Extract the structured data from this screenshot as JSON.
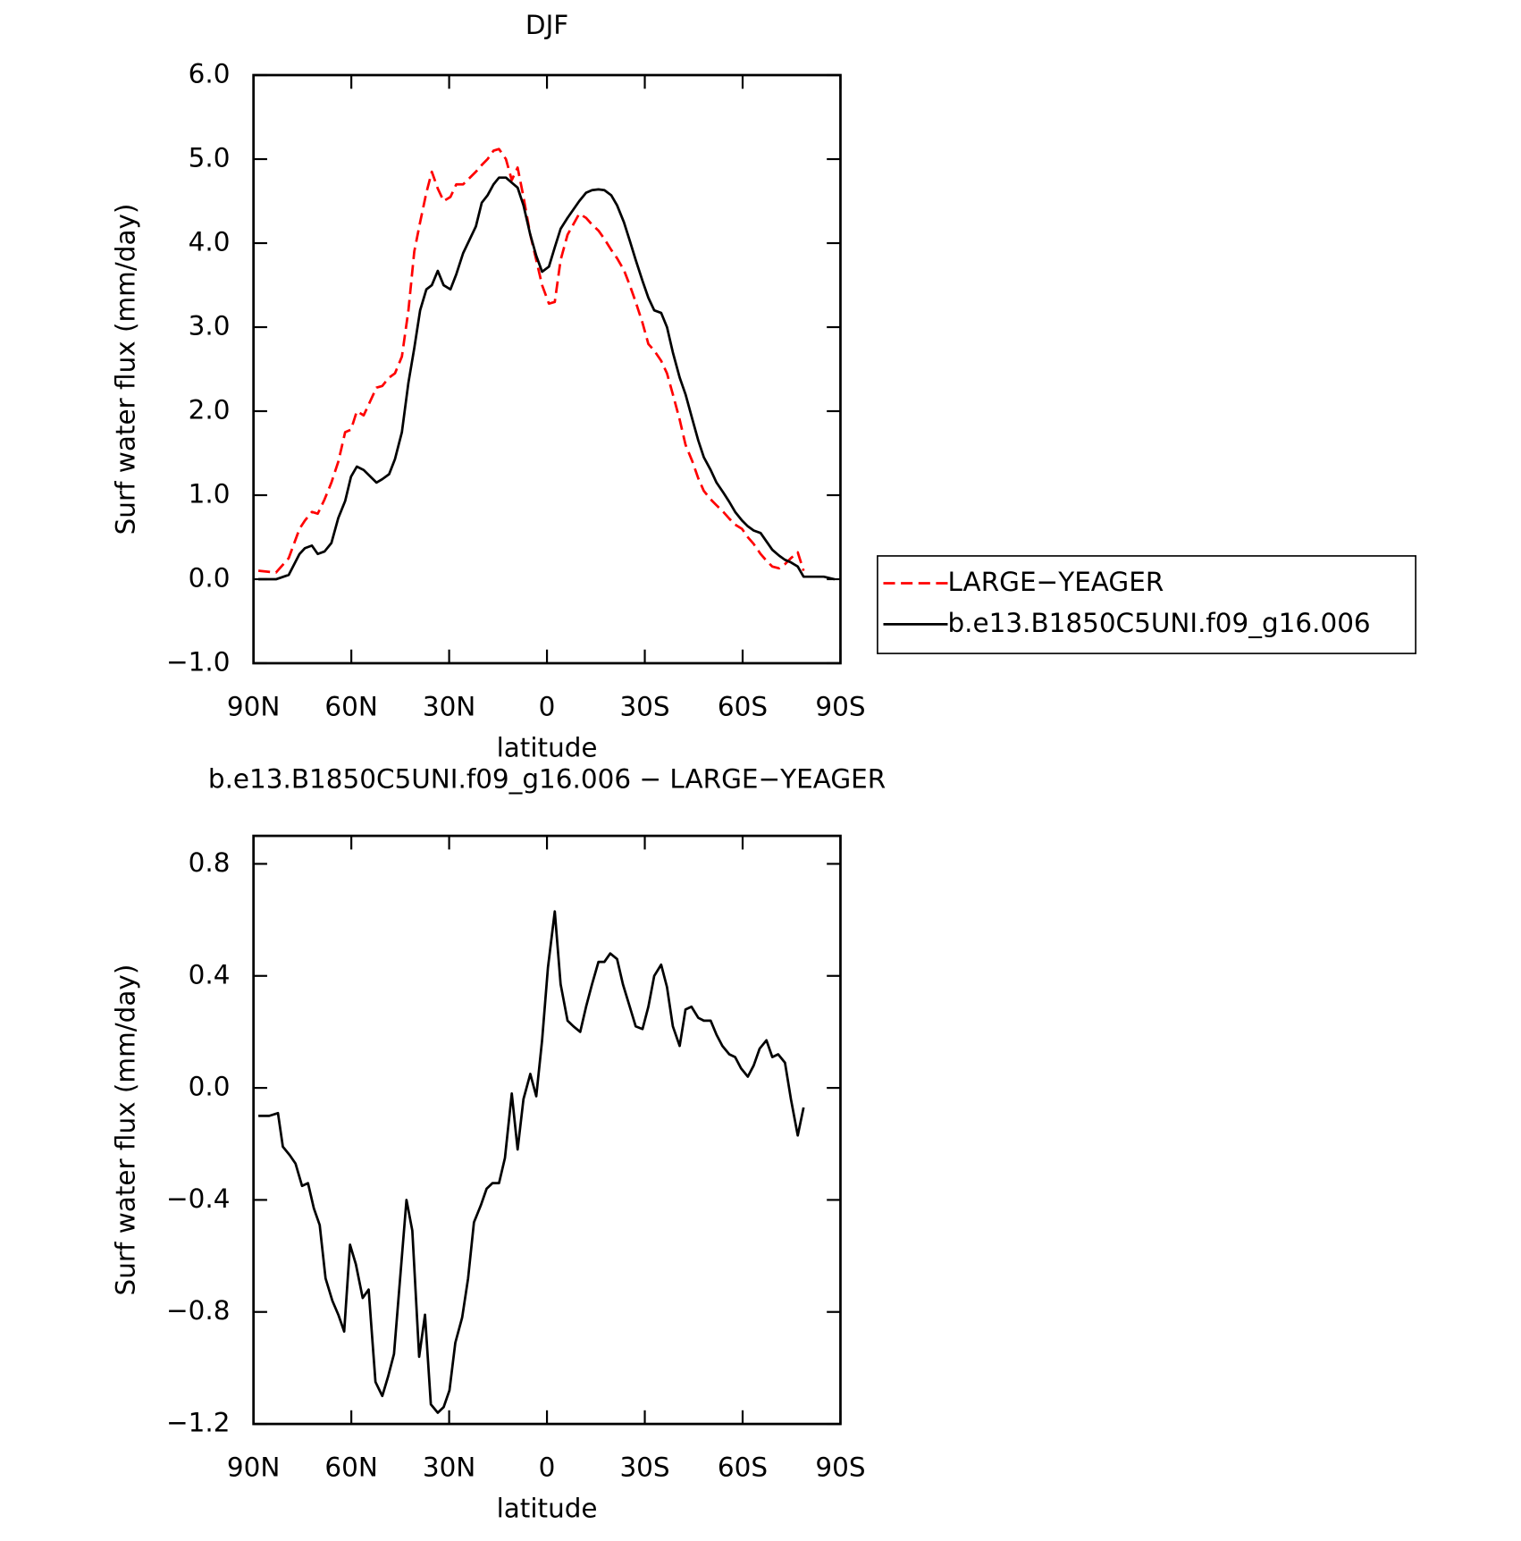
{
  "chart_data": [
    {
      "type": "line",
      "title": "DJF",
      "x_label": "latitude",
      "y_label": "Surf water flux (mm/day)",
      "xlim": [
        90,
        -90
      ],
      "ylim": [
        -1.0,
        6.0
      ],
      "xticks": [
        {
          "value": 90,
          "label": "90N"
        },
        {
          "value": 60,
          "label": "60N"
        },
        {
          "value": 30,
          "label": "30N"
        },
        0,
        {
          "value": -30,
          "label": "30S"
        },
        {
          "value": -60,
          "label": "60S"
        },
        {
          "value": -90,
          "label": "90S"
        }
      ],
      "yticks": [
        {
          "value": -1.0,
          "label": "−1.0"
        },
        {
          "value": 0,
          "label": "0.0"
        },
        {
          "value": 1,
          "label": "1.0"
        },
        {
          "value": 2,
          "label": "2.0"
        },
        {
          "value": 3,
          "label": "3.0"
        },
        {
          "value": 4,
          "label": "4.0"
        },
        {
          "value": 5,
          "label": "5.0"
        },
        {
          "value": 6,
          "label": "6.0"
        }
      ],
      "legend": "right",
      "x": [
        88.5,
        83.1,
        79.2,
        75.9,
        74.2,
        72.1,
        70.3,
        68.2,
        66.1,
        64.0,
        61.9,
        60.1,
        58.3,
        56.2,
        52.3,
        50.5,
        48.4,
        46.6,
        44.5,
        42.5,
        40.7,
        38.9,
        37.0,
        35.3,
        33.5,
        31.7,
        29.6,
        27.8,
        25.7,
        21.8,
        20.0,
        18.2,
        16.4,
        14.7,
        12.6,
        10.8,
        9.0,
        7.2,
        5.1,
        3.3,
        1.5,
        -0.6,
        -2.4,
        -4.2,
        -6.3,
        -9.9,
        -12.0,
        -13.8,
        -15.8,
        -17.6,
        -19.7,
        -21.5,
        -23.6,
        -25.4,
        -27.2,
        -29.3,
        -31.1,
        -32.9,
        -35.0,
        -36.8,
        -38.6,
        -40.7,
        -42.5,
        -44.6,
        -46.4,
        -48.1,
        -50.2,
        -52.0,
        -54.1,
        -55.9,
        -57.7,
        -59.8,
        -61.6,
        -63.4,
        -65.5,
        -67.3,
        -69.1,
        -71.2,
        -73.0,
        -74.8,
        -76.9,
        -78.7,
        -82.2,
        -84.9,
        -88.2
      ],
      "series": [
        {
          "name": "LARGE−YEAGER",
          "color": "#ff0000",
          "dash": true,
          "values": [
            0.1,
            0.08,
            0.25,
            0.6,
            0.7,
            0.8,
            0.78,
            0.95,
            1.15,
            1.4,
            1.75,
            1.78,
            2.0,
            1.95,
            2.28,
            2.3,
            2.4,
            2.45,
            2.65,
            3.2,
            3.9,
            4.25,
            4.6,
            4.85,
            4.65,
            4.5,
            4.55,
            4.7,
            4.7,
            4.85,
            4.93,
            5.0,
            5.1,
            5.12,
            5.0,
            4.75,
            4.9,
            4.55,
            4.1,
            3.8,
            3.5,
            3.28,
            3.3,
            3.8,
            4.1,
            4.35,
            4.3,
            4.22,
            4.15,
            4.05,
            3.92,
            3.82,
            3.68,
            3.5,
            3.3,
            3.05,
            2.8,
            2.72,
            2.6,
            2.45,
            2.2,
            1.9,
            1.6,
            1.4,
            1.2,
            1.05,
            0.95,
            0.88,
            0.8,
            0.72,
            0.65,
            0.6,
            0.5,
            0.42,
            0.3,
            0.22,
            0.15,
            0.13,
            0.18,
            0.25,
            0.32,
            0.1,
            null,
            null,
            null
          ]
        },
        {
          "name": "b.e13.B1850C5UNI.f09_g16.006",
          "color": "#000000",
          "dash": false,
          "values": [
            0.0,
            0.0,
            0.05,
            0.3,
            0.37,
            0.4,
            0.3,
            0.33,
            0.43,
            0.73,
            0.93,
            1.22,
            1.34,
            1.3,
            1.15,
            1.19,
            1.25,
            1.43,
            1.75,
            2.34,
            2.75,
            3.2,
            3.45,
            3.5,
            3.67,
            3.5,
            3.45,
            3.63,
            3.88,
            4.2,
            4.48,
            4.57,
            4.7,
            4.78,
            4.78,
            4.72,
            4.66,
            4.45,
            4.1,
            3.85,
            3.66,
            3.72,
            3.95,
            4.17,
            4.3,
            4.5,
            4.6,
            4.63,
            4.64,
            4.63,
            4.57,
            4.45,
            4.25,
            4.03,
            3.8,
            3.55,
            3.35,
            3.2,
            3.17,
            3.0,
            2.7,
            2.4,
            2.2,
            1.9,
            1.65,
            1.45,
            1.3,
            1.15,
            1.03,
            0.92,
            0.8,
            0.7,
            0.63,
            0.58,
            0.55,
            0.45,
            0.35,
            0.28,
            0.23,
            0.2,
            0.15,
            0.03,
            0.03,
            0.03,
            0.0
          ]
        }
      ]
    },
    {
      "type": "line",
      "title": "b.e13.B1850C5UNI.f09_g16.006 − LARGE−YEAGER",
      "x_label": "latitude",
      "y_label": "Surf water flux (mm/day)",
      "xlim": [
        90,
        -90
      ],
      "ylim": [
        -1.2,
        0.9
      ],
      "xticks": [
        {
          "value": 90,
          "label": "90N"
        },
        {
          "value": 60,
          "label": "60N"
        },
        {
          "value": 30,
          "label": "30N"
        },
        0,
        {
          "value": -30,
          "label": "30S"
        },
        {
          "value": -60,
          "label": "60S"
        },
        {
          "value": -90,
          "label": "90S"
        }
      ],
      "yticks": [
        {
          "value": -1.2,
          "label": "−1.2"
        },
        {
          "value": -0.8,
          "label": "−0.8"
        },
        {
          "value": -0.4,
          "label": "−0.4"
        },
        {
          "value": 0,
          "label": "0.0"
        },
        0.4,
        0.8
      ],
      "x": [
        88.5,
        85.2,
        82.5,
        81.0,
        78.9,
        77.1,
        75.1,
        73.3,
        71.5,
        69.7,
        67.9,
        65.8,
        64.0,
        62.2,
        60.4,
        58.6,
        56.5,
        54.7,
        52.6,
        50.5,
        48.7,
        46.9,
        43.1,
        41.3,
        39.2,
        37.4,
        35.6,
        33.5,
        31.7,
        29.9,
        28.1,
        26.0,
        24.2,
        22.4,
        20.3,
        18.5,
        16.7,
        14.7,
        12.9,
        10.8,
        9.0,
        7.2,
        5.1,
        3.3,
        1.5,
        -0.3,
        -2.4,
        -4.2,
        -6.3,
        -8.1,
        -10.2,
        -12.0,
        -13.8,
        -15.8,
        -17.6,
        -19.4,
        -21.5,
        -23.3,
        -25.4,
        -27.2,
        -29.3,
        -31.1,
        -32.9,
        -35.0,
        -36.8,
        -38.6,
        -40.7,
        -42.5,
        -44.3,
        -46.4,
        -48.1,
        -50.2,
        -52.0,
        -53.8,
        -55.9,
        -57.7,
        -59.5,
        -61.6,
        -63.4,
        -65.2,
        -67.3,
        -69.1,
        -70.9,
        -73.0,
        -74.8,
        -76.9,
        -78.7
      ],
      "series": [
        {
          "color": "#000000",
          "dash": false,
          "values": [
            -0.1,
            -0.1,
            -0.09,
            -0.21,
            -0.24,
            -0.27,
            -0.35,
            -0.34,
            -0.43,
            -0.49,
            -0.68,
            -0.76,
            -0.81,
            -0.87,
            -0.56,
            -0.63,
            -0.75,
            -0.72,
            -1.05,
            -1.1,
            -1.03,
            -0.95,
            -0.4,
            -0.51,
            -0.96,
            -0.81,
            -1.13,
            -1.16,
            -1.14,
            -1.08,
            -0.91,
            -0.82,
            -0.68,
            -0.48,
            -0.42,
            -0.36,
            -0.34,
            -0.34,
            -0.25,
            -0.02,
            -0.22,
            -0.04,
            0.05,
            -0.03,
            0.17,
            0.43,
            0.63,
            0.37,
            0.24,
            0.22,
            0.2,
            0.29,
            0.37,
            0.45,
            0.45,
            0.48,
            0.46,
            0.37,
            0.29,
            0.22,
            0.21,
            0.29,
            0.4,
            0.44,
            0.36,
            0.22,
            0.15,
            0.28,
            0.29,
            0.25,
            0.24,
            0.24,
            0.19,
            0.15,
            0.12,
            0.11,
            0.07,
            0.04,
            0.08,
            0.14,
            0.17,
            0.11,
            0.12,
            0.09,
            -0.04,
            -0.17,
            -0.07
          ]
        }
      ]
    }
  ]
}
